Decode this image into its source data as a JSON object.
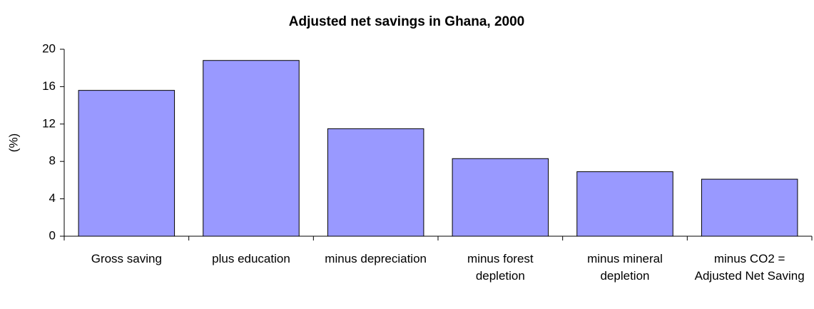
{
  "chart_data": {
    "type": "bar",
    "title": "Adjusted net savings in Ghana, 2000",
    "y_label": "(%)",
    "categories": [
      "Gross saving",
      "plus education",
      "minus depreciation",
      "minus forest depletion",
      "minus mineral depletion",
      "minus CO2 = Adjusted Net Saving"
    ],
    "values": [
      15.6,
      18.8,
      11.5,
      8.3,
      6.9,
      6.1
    ],
    "color": "#9999ff",
    "ylim": [
      0,
      20
    ],
    "yticks": [
      0,
      4,
      8,
      12,
      16,
      20
    ],
    "grid": false
  }
}
